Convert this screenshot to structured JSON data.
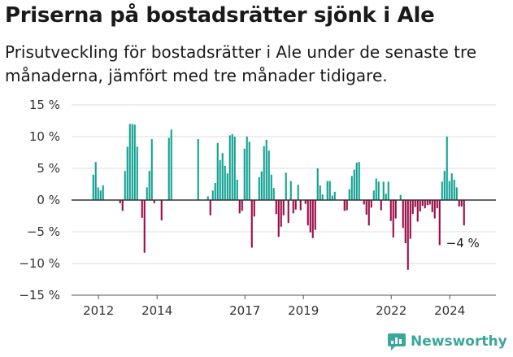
{
  "title": "Priserna på bostadsrätter sjönk i Ale",
  "subtitle": "Prisutveckling för bostadsrätter i Ale under de senaste tre månaderna, jämfört med tre månader tidigare.",
  "brand": {
    "name": "Newsworthy",
    "color": "#3aa79a",
    "icon": "newsworthy-logo-icon"
  },
  "colors": {
    "positive": "#10a192",
    "negative": "#9b0b47",
    "grid": "#dddddd",
    "zero": "#333333"
  },
  "chart_data": {
    "type": "bar",
    "x_unit": "month",
    "x_start": "2011-11",
    "ylim": [
      -15,
      15
    ],
    "ytick_values": [
      15,
      10,
      5,
      0,
      -5,
      -10,
      -15
    ],
    "ytick_labels": [
      "15 %",
      "10 %",
      "5 %",
      "0 %",
      "−5 %",
      "−10 %",
      "−15 %"
    ],
    "xtick_months": [
      "2012-01",
      "2014-01",
      "2017-01",
      "2019-01",
      "2022-01",
      "2024-01"
    ],
    "xtick_labels": [
      "2012",
      "2014",
      "2017",
      "2019",
      "2022",
      "2024"
    ],
    "annotation": "−4 %",
    "grid": true,
    "legend": "none",
    "values": [
      4,
      6,
      2,
      1.5,
      2.3,
      0,
      0,
      0,
      0,
      0,
      0,
      -0.5,
      -1.7,
      4.6,
      8.4,
      12,
      12,
      11.9,
      8.4,
      0,
      -2.8,
      -8.3,
      2,
      4.6,
      9.6,
      -0.5,
      0,
      0,
      -3.2,
      0,
      0,
      9.8,
      11.1,
      0,
      0,
      0,
      0,
      0,
      0,
      0,
      0,
      0,
      0,
      9.6,
      0,
      0,
      0,
      0.6,
      -2.4,
      1.5,
      2.7,
      9,
      6.3,
      7.4,
      5.4,
      4.2,
      10.2,
      10.4,
      10,
      3.2,
      -2.1,
      -1.7,
      8.1,
      10,
      9.2,
      -7.5,
      -2.6,
      0,
      3.6,
      4.5,
      8.5,
      9.5,
      7.8,
      4,
      1.9,
      -2.2,
      -5.8,
      -4.2,
      -2.4,
      4.3,
      -3.6,
      3,
      -2.1,
      -1.5,
      2.4,
      -1.6,
      0,
      -0.6,
      -4,
      -5.1,
      -6,
      -4.7,
      5,
      2.3,
      0.9,
      0,
      3,
      3,
      0.7,
      1.3,
      0,
      0,
      0,
      -1.7,
      -1.6,
      1.7,
      3.8,
      4.8,
      5.9,
      6,
      0,
      -0.7,
      -2.3,
      -4,
      -1.2,
      1.5,
      3.4,
      2.9,
      -1.6,
      2.9,
      1,
      2.9,
      -3.3,
      -5.9,
      -2.9,
      0,
      0.8,
      -4.4,
      -6.8,
      -11,
      -6.1,
      -2.2,
      -1.1,
      -3.4,
      -1.8,
      -0.9,
      -1.3,
      -0.8,
      -0.7,
      -1.9,
      -2.9,
      -1.3,
      -7.1,
      2.9,
      4.6,
      10,
      3,
      4.2,
      3.2,
      2,
      -1,
      -1,
      -4
    ]
  }
}
